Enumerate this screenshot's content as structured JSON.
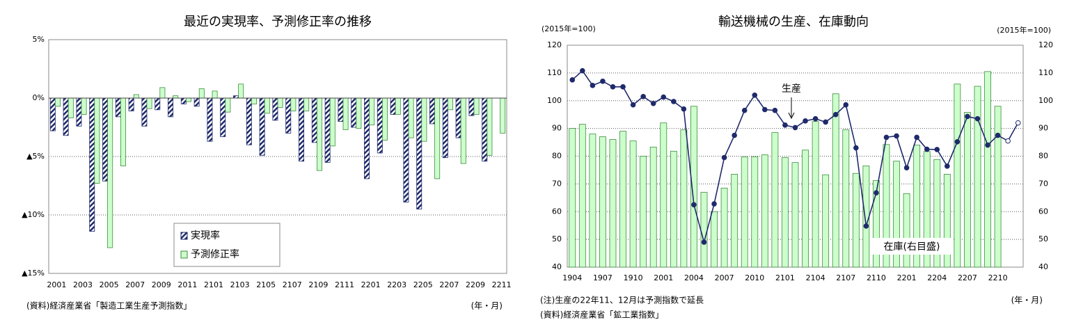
{
  "chart_data": [
    {
      "type": "bar",
      "title": "最近の実現率、予測修正率の推移",
      "categories": [
        "2001",
        null,
        "2003",
        null,
        "2005",
        null,
        "2007",
        null,
        "2009",
        null,
        "2011",
        null,
        "2101",
        null,
        "2103",
        null,
        "2105",
        null,
        "2107",
        null,
        "2109",
        null,
        "2111",
        null,
        "2201",
        null,
        "2203",
        null,
        "2205",
        null,
        "2207",
        null,
        "2209",
        null,
        "2211"
      ],
      "series": [
        {
          "name": "実現率",
          "color": "#1f2a6b",
          "hatch": true,
          "values": [
            -2.8,
            -3.2,
            -2.4,
            -11.4,
            -7.1,
            -1.6,
            -1.1,
            -2.4,
            -1.0,
            -1.6,
            -0.5,
            -0.7,
            -3.7,
            -3.3,
            0.2,
            -4.0,
            -4.9,
            -1.9,
            -3.0,
            -5.4,
            -3.8,
            -5.5,
            -2.0,
            -2.5,
            -6.9,
            -4.7,
            -1.4,
            -8.9,
            -9.5,
            -2.2,
            -5.1,
            -3.4,
            -1.5,
            -5.4,
            null
          ]
        },
        {
          "name": "予測修正率",
          "color": "#ccffcc",
          "edgecolor": "#3f8a3f",
          "values": [
            -0.7,
            -1.7,
            -1.4,
            -7.3,
            -12.8,
            -5.8,
            0.3,
            -0.9,
            0.9,
            0.2,
            -0.3,
            0.8,
            0.6,
            -1.2,
            1.2,
            -0.5,
            -1.3,
            -0.8,
            -1.1,
            -1.1,
            -6.2,
            -4.1,
            -2.7,
            -2.6,
            -2.3,
            -3.6,
            -1.4,
            -3.4,
            -3.7,
            -6.9,
            -1.0,
            -5.6,
            -1.4,
            -4.9,
            -3.0
          ]
        }
      ],
      "ylim": [
        -15,
        5
      ],
      "yticks": [
        {
          "value": 5,
          "label": "5%"
        },
        {
          "value": 0,
          "label": "0%"
        },
        {
          "value": -5,
          "label": "▲5%"
        },
        {
          "value": -10,
          "label": "▲10%"
        },
        {
          "value": -15,
          "label": "▲15%"
        }
      ],
      "grid": true,
      "legend": "lower center",
      "source": "(資料)経済産業省「製造工業生産予測指数」",
      "x_unit": "(年・月)"
    },
    {
      "type": "combo",
      "title": "輸送機械の生産、在庫動向",
      "categories": [
        "1904",
        null,
        null,
        "1907",
        null,
        null,
        "1910",
        null,
        null,
        "2001",
        null,
        null,
        "2004",
        null,
        null,
        "2007",
        null,
        null,
        "2010",
        null,
        null,
        "2101",
        null,
        null,
        "2104",
        null,
        null,
        "2107",
        null,
        null,
        "2110",
        null,
        null,
        "2201",
        null,
        null,
        "2204",
        null,
        null,
        "2207",
        null,
        null,
        "2210",
        null,
        null
      ],
      "series": [
        {
          "name": "生産",
          "type": "line",
          "color": "#1f2a6b",
          "values": [
            107.5,
            110.8,
            105.5,
            107,
            105,
            105,
            98.5,
            101.5,
            99,
            101.3,
            99.7,
            97,
            62.5,
            49,
            62.8,
            79.5,
            87.5,
            96.5,
            102,
            96.8,
            96.5,
            91.2,
            90.3,
            92.7,
            93.5,
            92.3,
            95,
            98.5,
            83,
            54.8,
            66.8,
            86.8,
            87.3,
            75.8,
            86.8,
            82.5,
            82.4,
            76.4,
            85.2,
            94.3,
            93.5,
            84,
            87.5,
            85.5,
            92
          ],
          "marker_fill": [
            "#1f2a6b",
            "#1f2a6b",
            "#1f2a6b",
            "#1f2a6b",
            "#1f2a6b",
            "#1f2a6b",
            "#1f2a6b",
            "#1f2a6b",
            "#1f2a6b",
            "#1f2a6b",
            "#1f2a6b",
            "#1f2a6b",
            "#1f2a6b",
            "#1f2a6b",
            "#1f2a6b",
            "#1f2a6b",
            "#1f2a6b",
            "#1f2a6b",
            "#1f2a6b",
            "#1f2a6b",
            "#1f2a6b",
            "#1f2a6b",
            "#1f2a6b",
            "#1f2a6b",
            "#1f2a6b",
            "#1f2a6b",
            "#1f2a6b",
            "#1f2a6b",
            "#1f2a6b",
            "#1f2a6b",
            "#1f2a6b",
            "#1f2a6b",
            "#1f2a6b",
            "#1f2a6b",
            "#1f2a6b",
            "#1f2a6b",
            "#1f2a6b",
            "#1f2a6b",
            "#1f2a6b",
            "#1f2a6b",
            "#1f2a6b",
            "#1f2a6b",
            "#1f2a6b",
            "#ffffff",
            "#ffffff"
          ]
        },
        {
          "name": "在庫(右目盛)",
          "type": "bar",
          "axis": "y2",
          "color": "#ccffcc",
          "edgecolor": "#3f8a3f",
          "values": [
            90,
            91.5,
            88,
            87,
            86,
            89,
            85.5,
            80,
            83.3,
            92,
            81.8,
            89.5,
            98,
            67,
            60,
            68.5,
            73.5,
            79.7,
            79.8,
            80.5,
            88.5,
            79.5,
            77.7,
            82.2,
            92.5,
            73.3,
            102.5,
            89.5,
            73.8,
            76.5,
            71.2,
            84.2,
            78.2,
            66.5,
            84,
            81.7,
            78.8,
            73.5,
            106,
            95.8,
            105.2,
            110.5,
            98,
            null,
            null
          ]
        }
      ],
      "ylim": [
        40,
        120
      ],
      "yticks": [
        40,
        50,
        60,
        70,
        80,
        90,
        100,
        110,
        120
      ],
      "y2lim": [
        40,
        120
      ],
      "y2ticks": [
        40,
        50,
        60,
        70,
        80,
        90,
        100,
        110,
        120
      ],
      "grid": true,
      "y_label": "(2015年=100)",
      "y2_label": "(2015年=100)",
      "note": "(注)生産の22年11、12月は予測指数で延長",
      "source": "(資料)経済産業省「鉱工業指数」",
      "x_unit": "(年・月)"
    }
  ]
}
